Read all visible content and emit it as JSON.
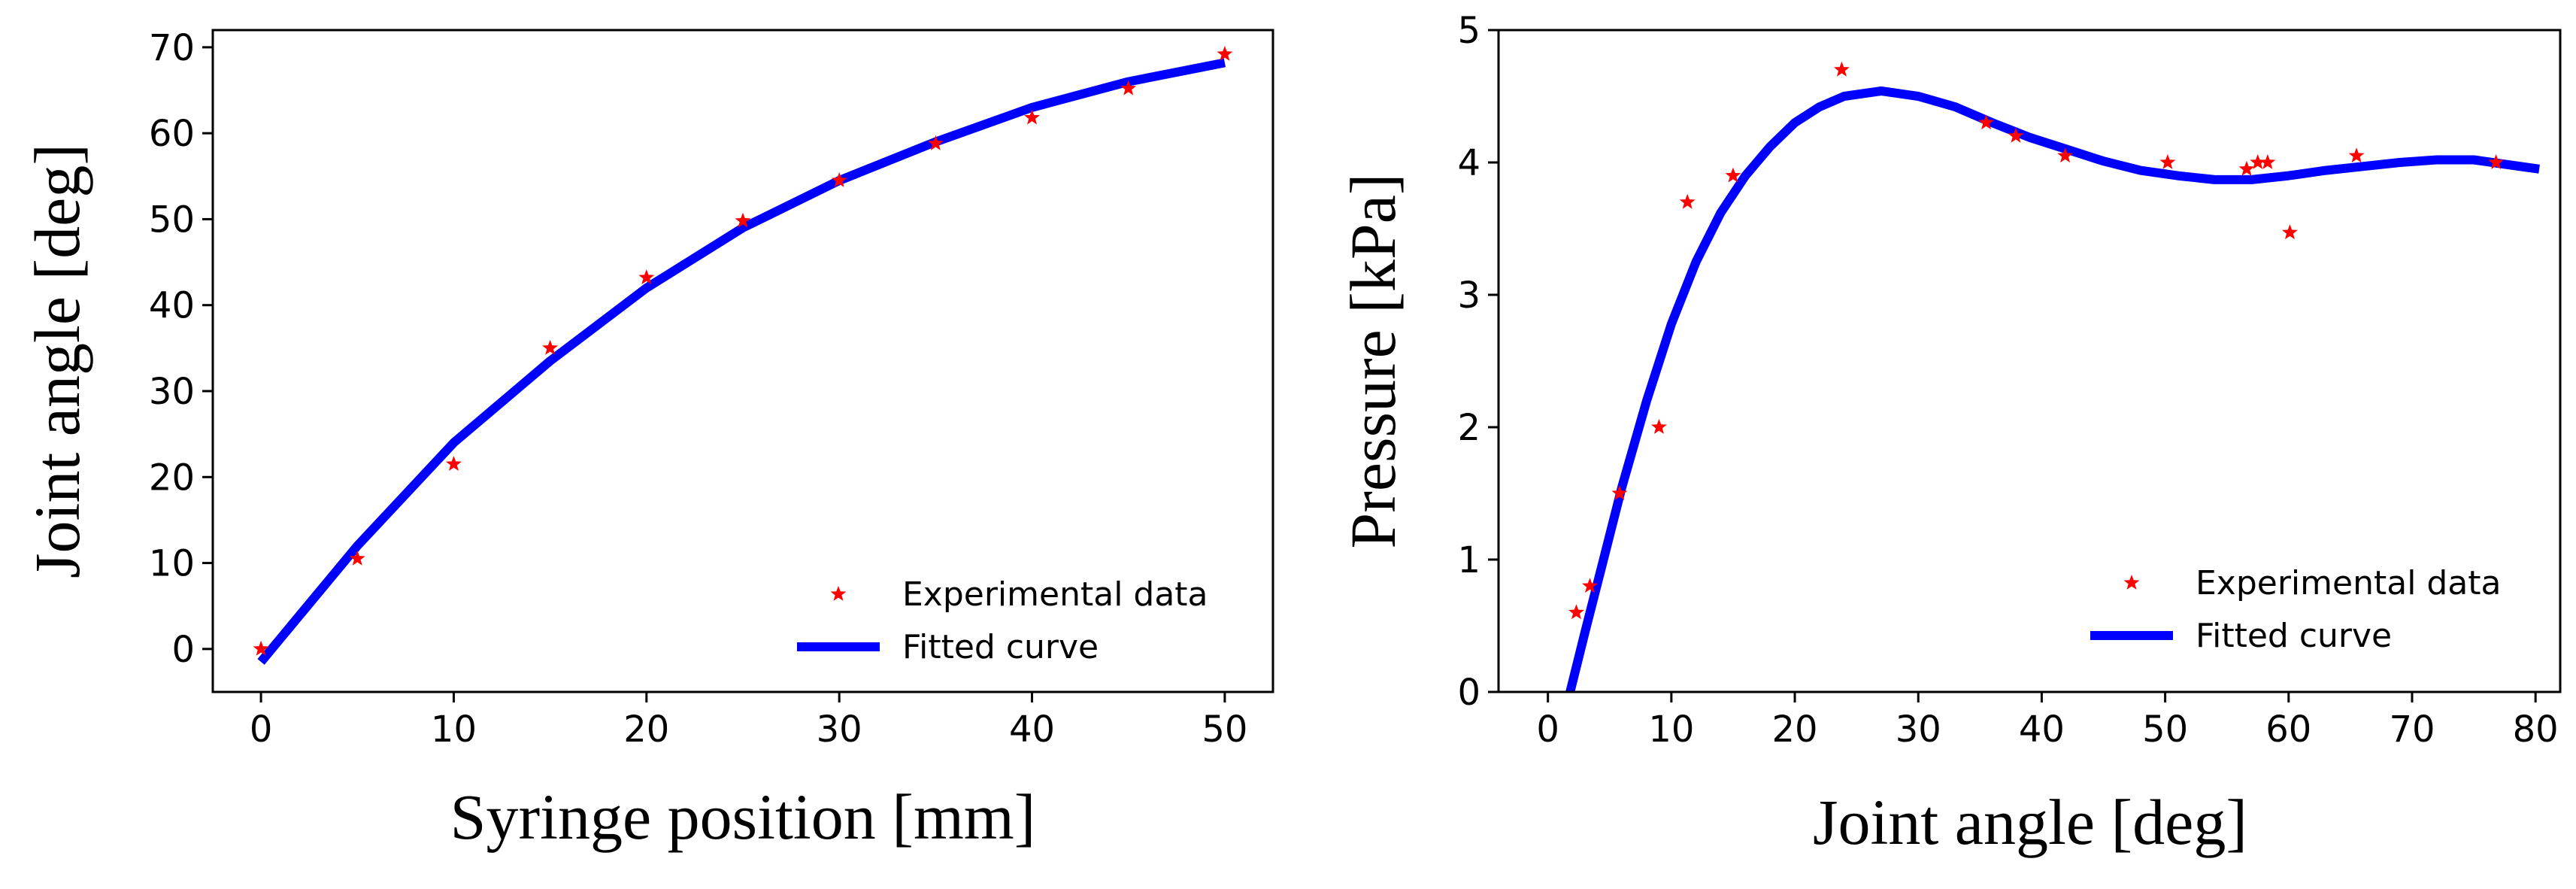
{
  "chart_data": [
    {
      "type": "scatter",
      "id": "left",
      "title": "",
      "xlabel": "Syringe position [mm]",
      "ylabel": "Joint angle [deg]",
      "xlim": [
        -2.5,
        52.5
      ],
      "ylim": [
        -5,
        72
      ],
      "xticks": [
        0,
        10,
        20,
        30,
        40,
        50
      ],
      "yticks": [
        0,
        10,
        20,
        30,
        40,
        50,
        60,
        70
      ],
      "legend_position": "lower right",
      "series": [
        {
          "name": "Experimental data",
          "kind": "markers",
          "color": "#ff0000",
          "marker": "star",
          "x": [
            0,
            5,
            10,
            15,
            20,
            25,
            30,
            35,
            40,
            45,
            50
          ],
          "y": [
            0,
            10.5,
            21.5,
            35,
            43.2,
            49.8,
            54.5,
            58.8,
            61.8,
            65.2,
            69.2
          ]
        },
        {
          "name": "Fitted curve",
          "kind": "line",
          "color": "#0000ff",
          "x": [
            0,
            5,
            10,
            15,
            20,
            25,
            30,
            35,
            40,
            45,
            50
          ],
          "y": [
            -1.5,
            12,
            24,
            33.5,
            42,
            49,
            54.5,
            59,
            63,
            66,
            68.2
          ]
        }
      ]
    },
    {
      "type": "scatter",
      "id": "right",
      "title": "",
      "xlabel": "Joint angle [deg]",
      "ylabel": "Pressure [kPa]",
      "xlim": [
        -4,
        82
      ],
      "ylim": [
        0,
        5
      ],
      "xticks": [
        0,
        10,
        20,
        30,
        40,
        50,
        60,
        70,
        80
      ],
      "yticks": [
        0,
        1,
        2,
        3,
        4,
        5
      ],
      "legend_position": "lower right",
      "series": [
        {
          "name": "Experimental data",
          "kind": "markers",
          "color": "#ff0000",
          "marker": "star",
          "x": [
            2.3,
            3.4,
            5.8,
            9,
            11.3,
            15,
            23.8,
            35.5,
            37.9,
            41.9,
            50.2,
            56.6,
            57.5,
            58.3,
            60.1,
            65.5,
            76.8
          ],
          "y": [
            0.6,
            0.8,
            1.5,
            2.0,
            3.7,
            3.9,
            4.7,
            4.3,
            4.2,
            4.05,
            4.0,
            3.95,
            4.0,
            4.0,
            3.47,
            4.05,
            4.0
          ]
        },
        {
          "name": "Fitted curve",
          "kind": "line",
          "color": "#0000ff",
          "x": [
            1.8,
            3,
            4.5,
            6,
            8,
            10,
            12,
            14,
            16,
            18,
            20,
            22,
            24,
            27,
            30,
            33,
            36,
            39,
            42,
            45,
            48,
            51,
            54,
            57,
            60,
            63,
            66,
            69,
            72,
            75,
            78,
            80.3
          ],
          "y": [
            0,
            0.45,
            1.0,
            1.55,
            2.2,
            2.78,
            3.25,
            3.62,
            3.9,
            4.12,
            4.3,
            4.42,
            4.5,
            4.54,
            4.5,
            4.42,
            4.3,
            4.19,
            4.1,
            4.01,
            3.94,
            3.9,
            3.87,
            3.87,
            3.9,
            3.94,
            3.97,
            4.0,
            4.02,
            4.02,
            3.98,
            3.95
          ]
        }
      ]
    }
  ]
}
